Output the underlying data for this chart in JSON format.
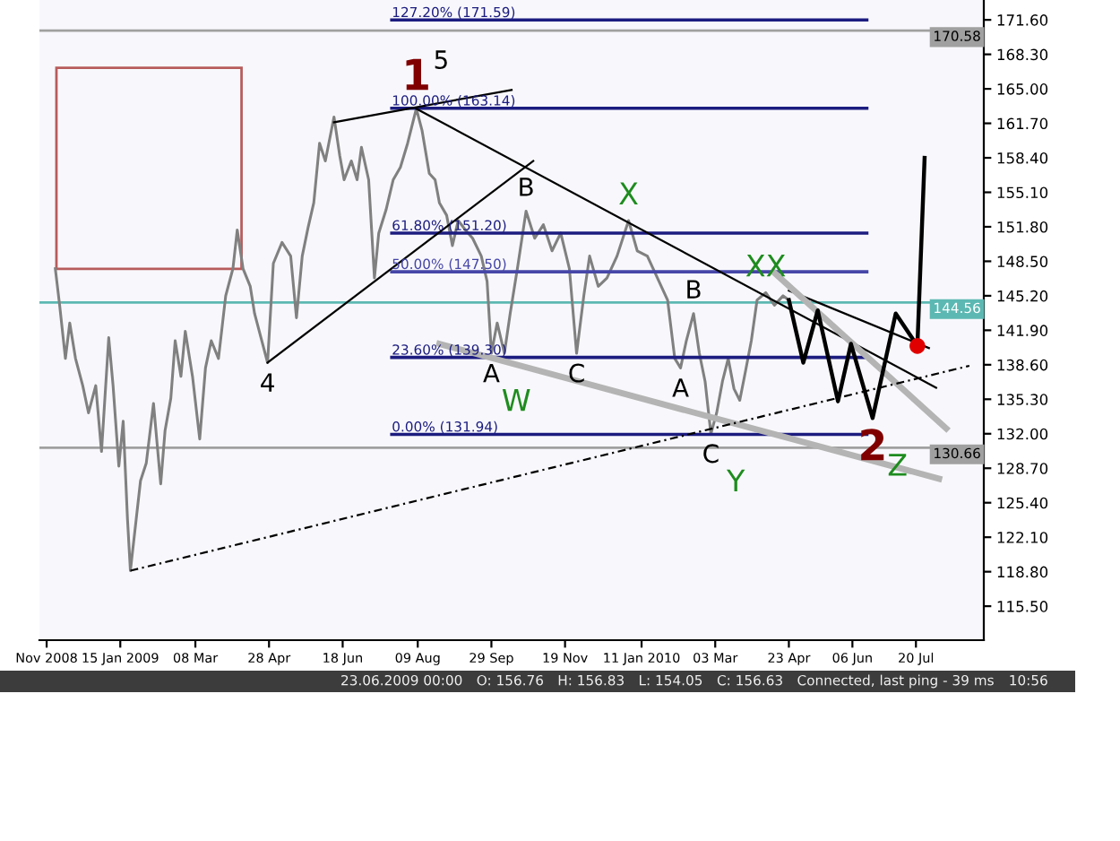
{
  "chart_data": {
    "type": "line",
    "xlim": [
      "2008-11-20",
      "2010-09-05"
    ],
    "xticks": [
      {
        "value": "2008-11-25",
        "label": "Nov 2008"
      },
      {
        "value": "2009-01-15",
        "label": "15 Jan 2009"
      },
      {
        "value": "2009-03-08",
        "label": "08 Mar"
      },
      {
        "value": "2009-04-28",
        "label": "28 Apr"
      },
      {
        "value": "2009-06-18",
        "label": "18 Jun"
      },
      {
        "value": "2009-08-09",
        "label": "09 Aug"
      },
      {
        "value": "2009-09-29",
        "label": "29 Sep"
      },
      {
        "value": "2009-11-19",
        "label": "19 Nov"
      },
      {
        "value": "2010-01-11",
        "label": "11 Jan 2010"
      },
      {
        "value": "2010-03-03",
        "label": "03 Mar"
      },
      {
        "value": "2010-04-23",
        "label": "23 Apr"
      },
      {
        "value": "2010-06-06",
        "label": "06 Jun"
      },
      {
        "value": "2010-07-20",
        "label": "20 Jul"
      }
    ],
    "ylim": [
      112.25,
      173.5
    ],
    "yticks": [
      {
        "value": 115.5,
        "label": "115.50"
      },
      {
        "value": 118.8,
        "label": "118.80"
      },
      {
        "value": 122.1,
        "label": "122.10"
      },
      {
        "value": 125.4,
        "label": "125.40"
      },
      {
        "value": 128.7,
        "label": "128.70"
      },
      {
        "value": 132.0,
        "label": "132.00"
      },
      {
        "value": 135.3,
        "label": "135.30"
      },
      {
        "value": 138.6,
        "label": "138.60"
      },
      {
        "value": 141.9,
        "label": "141.90"
      },
      {
        "value": 145.2,
        "label": "145.20"
      },
      {
        "value": 148.5,
        "label": "148.50"
      },
      {
        "value": 151.8,
        "label": "151.80"
      },
      {
        "value": 155.1,
        "label": "155.10"
      },
      {
        "value": 158.4,
        "label": "158.40"
      },
      {
        "value": 161.7,
        "label": "161.70"
      },
      {
        "value": 165.0,
        "label": "165.00"
      },
      {
        "value": 168.3,
        "label": "168.30"
      },
      {
        "value": 171.6,
        "label": "171.60"
      }
    ],
    "grid": false,
    "series": [
      {
        "color": "#808080",
        "x": [
          "2008-12-01",
          "2008-12-04",
          "2008-12-08",
          "2008-12-11",
          "2008-12-15",
          "2008-12-20",
          "2008-12-24",
          "2008-12-29",
          "2009-01-02",
          "2009-01-07",
          "2009-01-10",
          "2009-01-14",
          "2009-01-17",
          "2009-01-20",
          "2009-01-22",
          "2009-01-26",
          "2009-01-29",
          "2009-02-02",
          "2009-02-07",
          "2009-02-12",
          "2009-02-15",
          "2009-02-19",
          "2009-02-22",
          "2009-02-26",
          "2009-03-01",
          "2009-03-06",
          "2009-03-11",
          "2009-03-15",
          "2009-03-19",
          "2009-03-24",
          "2009-03-29",
          "2009-04-03",
          "2009-04-06",
          "2009-04-10",
          "2009-04-15",
          "2009-04-18",
          "2009-04-23",
          "2009-04-27",
          "2009-05-01",
          "2009-05-07",
          "2009-05-13",
          "2009-05-17",
          "2009-05-21",
          "2009-05-25",
          "2009-05-29",
          "2009-06-02",
          "2009-06-06",
          "2009-06-12",
          "2009-06-16",
          "2009-06-19",
          "2009-06-24",
          "2009-06-28",
          "2009-07-01",
          "2009-07-06",
          "2009-07-10",
          "2009-07-13",
          "2009-07-18",
          "2009-07-23",
          "2009-07-28",
          "2009-08-02",
          "2009-08-08",
          "2009-08-12",
          "2009-08-17",
          "2009-08-21",
          "2009-08-24",
          "2009-08-29",
          "2009-09-02",
          "2009-09-06",
          "2009-09-11",
          "2009-09-16",
          "2009-09-22",
          "2009-09-26",
          "2009-09-29",
          "2009-10-03",
          "2009-10-08",
          "2009-10-12",
          "2009-10-17",
          "2009-10-23",
          "2009-10-29",
          "2009-11-04",
          "2009-11-10",
          "2009-11-16",
          "2009-11-22",
          "2009-11-27",
          "2009-12-02",
          "2009-12-06",
          "2009-12-12",
          "2009-12-18",
          "2009-12-25",
          "2010-01-02",
          "2010-01-08",
          "2010-01-15",
          "2010-01-23",
          "2010-01-29",
          "2010-02-03",
          "2010-02-07",
          "2010-02-11",
          "2010-02-16",
          "2010-02-20",
          "2010-02-24",
          "2010-02-28",
          "2010-03-04",
          "2010-03-08",
          "2010-03-12",
          "2010-03-16",
          "2010-03-20",
          "2010-03-24",
          "2010-03-28",
          "2010-04-01",
          "2010-04-07",
          "2010-04-13",
          "2010-04-19",
          "2010-04-23"
        ],
        "values": [
          147.8,
          144.3,
          139.2,
          142.6,
          139.2,
          136.6,
          134.0,
          136.6,
          130.3,
          141.2,
          136.6,
          128.9,
          133.2,
          123.8,
          118.9,
          123.8,
          127.5,
          129.2,
          134.9,
          127.2,
          132.3,
          135.4,
          140.9,
          137.5,
          141.8,
          137.5,
          131.5,
          138.3,
          140.9,
          139.2,
          145.2,
          147.8,
          151.5,
          147.8,
          146.1,
          143.5,
          140.9,
          138.8,
          148.3,
          150.3,
          149.0,
          143.1,
          149.0,
          151.7,
          154.1,
          159.8,
          158.1,
          162.3,
          158.6,
          156.3,
          158.1,
          156.3,
          159.4,
          156.3,
          146.9,
          151.2,
          153.4,
          156.3,
          157.5,
          159.8,
          163.1,
          161.0,
          156.9,
          156.3,
          154.1,
          152.9,
          150.0,
          152.4,
          151.5,
          150.7,
          149.0,
          146.6,
          139.7,
          142.6,
          139.7,
          143.5,
          147.8,
          153.3,
          150.7,
          152.0,
          149.5,
          151.2,
          147.8,
          139.7,
          145.2,
          149.0,
          146.1,
          146.9,
          149.0,
          152.4,
          149.5,
          149.0,
          146.6,
          144.8,
          139.2,
          138.3,
          140.9,
          143.5,
          139.7,
          137.0,
          132.0,
          134.0,
          137.0,
          139.2,
          136.3,
          135.2,
          138.0,
          140.9,
          144.8,
          145.5,
          144.3,
          145.2,
          144.8
        ]
      },
      {
        "name": "127.20% (171.59)",
        "color": "#1c1c80",
        "x": [
          "2009-07-22",
          "2010-06-16"
        ],
        "values": [
          171.59,
          171.59
        ]
      },
      {
        "name": "100.00% (163.14)",
        "color": "#1c1c80",
        "x": [
          "2009-07-22",
          "2010-06-16"
        ],
        "values": [
          163.14,
          163.14
        ]
      },
      {
        "name": "61.80% (151.20)",
        "color": "#1c1c80",
        "x": [
          "2009-07-22",
          "2010-06-16"
        ],
        "values": [
          151.2,
          151.2
        ]
      },
      {
        "name": "50.00% (147.50)",
        "color": "#4646a8",
        "x": [
          "2009-07-22",
          "2010-06-16"
        ],
        "values": [
          147.5,
          147.5
        ]
      },
      {
        "name": "23.60% (139.30)",
        "color": "#1c1c80",
        "x": [
          "2009-07-22",
          "2010-06-16"
        ],
        "values": [
          139.3,
          139.3
        ]
      },
      {
        "name": "0.00% (131.94)",
        "color": "#1c1c80",
        "x": [
          "2009-07-22",
          "2010-06-16"
        ],
        "values": [
          131.94,
          131.94
        ]
      },
      {
        "color": "#000000",
        "x": [
          "2009-06-12",
          "2009-10-13"
        ],
        "values": [
          161.8,
          164.9
        ]
      },
      {
        "color": "#000000",
        "x": [
          "2009-04-27",
          "2009-10-28"
        ],
        "values": [
          138.8,
          158.1
        ]
      },
      {
        "color": "#000000",
        "x": [
          "2009-08-08",
          "2010-08-03"
        ],
        "values": [
          163.1,
          136.4
        ]
      },
      {
        "color": "#000000",
        "x": [
          "2010-04-23",
          "2010-07-29"
        ],
        "values": [
          145.7,
          140.2
        ]
      },
      {
        "color": "#b4b4b4",
        "x": [
          "2009-08-24",
          "2010-08-05"
        ],
        "values": [
          140.6,
          127.7
        ]
      },
      {
        "color": "#b4b4b4",
        "x": [
          "2010-04-13",
          "2010-08-10"
        ],
        "values": [
          147.4,
          132.5
        ]
      },
      {
        "color": "#000000",
        "line_style": "dashed",
        "x": [
          "2009-01-22",
          "2010-08-26"
        ],
        "values": [
          118.9,
          138.5
        ]
      },
      {
        "color": "#000000",
        "x": [
          "2010-04-23",
          "2010-05-03",
          "2010-05-13",
          "2010-05-27",
          "2010-06-05",
          "2010-06-20",
          "2010-07-06",
          "2010-07-21",
          "2010-07-26"
        ],
        "values": [
          144.8,
          138.8,
          143.8,
          135.1,
          140.6,
          133.5,
          143.5,
          140.4,
          158.4
        ]
      },
      {
        "type": "scatter",
        "marker": "circle",
        "color": "#e00000",
        "x": [
          "2010-07-21"
        ],
        "values": [
          140.4
        ]
      }
    ],
    "ref_lines": [
      {
        "axis": "y",
        "value": 170.58,
        "label": "170.58",
        "color": "#a0a0a0"
      },
      {
        "axis": "y",
        "value": 144.56,
        "label": "144.56",
        "color": "#5cb8b2"
      },
      {
        "axis": "y",
        "value": 130.66,
        "label": "130.66",
        "color": "#a0a0a0"
      }
    ],
    "annotations": [
      {
        "text": "1",
        "x": "2009-08-08",
        "y": 163.1
      },
      {
        "text": "5",
        "x": "2009-08-08",
        "y": 163.1
      },
      {
        "text": "4",
        "x": "2009-04-27",
        "y": 138.8
      },
      {
        "text": "B",
        "x": "2009-10-23",
        "y": 153.3
      },
      {
        "text": "A",
        "x": "2009-09-29",
        "y": 139.7
      },
      {
        "text": "W",
        "x": "2009-09-29",
        "y": 139.7
      },
      {
        "text": "C",
        "x": "2009-11-27",
        "y": 139.7
      },
      {
        "text": "X",
        "x": "2010-01-02",
        "y": 152.4
      },
      {
        "text": "A",
        "x": "2010-02-07",
        "y": 138.3
      },
      {
        "text": "B",
        "x": "2010-02-16",
        "y": 143.5
      },
      {
        "text": "C",
        "x": "2010-02-28",
        "y": 132.0
      },
      {
        "text": "Y",
        "x": "2010-02-28",
        "y": 132.0
      },
      {
        "text": "XX",
        "x": "2010-04-07",
        "y": 145.5
      },
      {
        "text": "2",
        "x": "2010-06-20",
        "y": 133.5
      },
      {
        "text": "Z",
        "x": "2010-06-20",
        "y": 133.5
      },
      "23.06.2009 00:00",
      "O: 156.76",
      "H: 156.83",
      "L: 154.05",
      "C: 156.63",
      "Connected, last ping - 39 ms",
      "10:56"
    ]
  }
}
